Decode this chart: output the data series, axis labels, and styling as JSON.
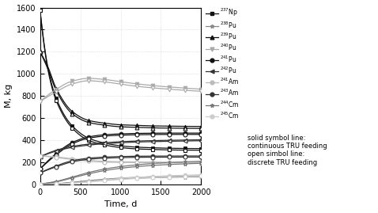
{
  "xlabel": "Time, d",
  "ylabel": "M, kg",
  "xlim": [
    0,
    2000
  ],
  "ylim": [
    0,
    1600
  ],
  "yticks": [
    0,
    200,
    400,
    600,
    800,
    1000,
    1200,
    1400,
    1600
  ],
  "xticks": [
    0,
    500,
    1000,
    1500,
    2000
  ],
  "series": [
    {
      "label": "$^{237}$Np",
      "color": "#111111",
      "marker": "s",
      "t_cont": [
        0,
        100,
        200,
        400,
        600,
        800,
        1000,
        1200,
        1400,
        1600,
        1800,
        2000
      ],
      "v_cont": [
        1575,
        1050,
        780,
        530,
        420,
        375,
        350,
        338,
        332,
        328,
        326,
        325
      ],
      "t_disc": [
        0,
        100,
        200,
        400,
        600,
        800,
        1000,
        1200,
        1400,
        1600,
        1800,
        2000
      ],
      "v_disc": [
        1575,
        1030,
        760,
        510,
        400,
        358,
        334,
        322,
        317,
        313,
        311,
        310
      ]
    },
    {
      "label": "$^{238}$Pu",
      "color": "#888888",
      "marker": "*",
      "t_cont": [
        0,
        200,
        400,
        600,
        800,
        1000,
        1200,
        1400,
        1600,
        1800,
        2000
      ],
      "v_cont": [
        3,
        8,
        20,
        35,
        48,
        58,
        65,
        70,
        74,
        77,
        79
      ],
      "t_disc": [
        0,
        200,
        400,
        600,
        800,
        1000,
        1200,
        1400,
        1600,
        1800,
        2000
      ],
      "v_disc": [
        3,
        7,
        17,
        30,
        42,
        51,
        57,
        62,
        65,
        68,
        70
      ]
    },
    {
      "label": "$^{239}$Pu",
      "color": "#111111",
      "marker": "^",
      "t_cont": [
        0,
        100,
        200,
        400,
        600,
        800,
        1000,
        1200,
        1400,
        1600,
        1800,
        2000
      ],
      "v_cont": [
        1200,
        1060,
        870,
        660,
        580,
        555,
        540,
        535,
        530,
        528,
        526,
        525
      ],
      "t_disc": [
        0,
        100,
        200,
        400,
        600,
        800,
        1000,
        1200,
        1400,
        1600,
        1800,
        2000
      ],
      "v_disc": [
        1200,
        1040,
        850,
        640,
        562,
        537,
        522,
        517,
        512,
        510,
        508,
        507
      ]
    },
    {
      "label": "$^{240}$Pu",
      "color": "#aaaaaa",
      "marker": "v",
      "t_cont": [
        0,
        200,
        400,
        600,
        800,
        1000,
        1200,
        1400,
        1600,
        1800,
        2000
      ],
      "v_cont": [
        750,
        860,
        935,
        960,
        950,
        930,
        910,
        895,
        882,
        872,
        862
      ],
      "t_disc": [
        0,
        200,
        400,
        600,
        800,
        1000,
        1200,
        1400,
        1600,
        1800,
        2000
      ],
      "v_disc": [
        750,
        838,
        910,
        938,
        928,
        908,
        888,
        874,
        862,
        852,
        843
      ]
    },
    {
      "label": "$^{241}$Pu",
      "color": "#111111",
      "marker": "o",
      "t_cont": [
        0,
        200,
        400,
        600,
        800,
        1000,
        1200,
        1400,
        1600,
        1800,
        2000
      ],
      "v_cont": [
        140,
        280,
        380,
        430,
        450,
        458,
        462,
        464,
        465,
        465,
        465
      ],
      "t_disc": [
        0,
        200,
        400,
        600,
        800,
        1000,
        1200,
        1400,
        1600,
        1800,
        2000
      ],
      "v_disc": [
        140,
        268,
        368,
        418,
        438,
        446,
        450,
        452,
        453,
        453,
        453
      ]
    },
    {
      "label": "$^{242}$Pu",
      "color": "#333333",
      "marker": "<",
      "t_cont": [
        0,
        200,
        400,
        600,
        800,
        1000,
        1200,
        1400,
        1600,
        1800,
        2000
      ],
      "v_cont": [
        250,
        310,
        345,
        365,
        378,
        387,
        393,
        397,
        400,
        403,
        405
      ],
      "t_disc": [
        0,
        200,
        400,
        600,
        800,
        1000,
        1200,
        1400,
        1600,
        1800,
        2000
      ],
      "v_disc": [
        250,
        302,
        336,
        356,
        369,
        378,
        384,
        388,
        391,
        394,
        396
      ]
    },
    {
      "label": "$^{241}$Am",
      "color": "#bbbbbb",
      "marker": "o",
      "t_cont": [
        0,
        200,
        400,
        600,
        800,
        1000,
        1200,
        1400,
        1600,
        1800,
        2000
      ],
      "v_cont": [
        260,
        250,
        232,
        218,
        210,
        206,
        204,
        203,
        202,
        202,
        201
      ],
      "t_disc": [
        0,
        200,
        400,
        600,
        800,
        1000,
        1200,
        1400,
        1600,
        1800,
        2000
      ],
      "v_disc": [
        260,
        244,
        226,
        212,
        204,
        200,
        198,
        197,
        196,
        196,
        195
      ]
    },
    {
      "label": "$^{243}$Am",
      "color": "#333333",
      "marker": "o",
      "t_cont": [
        0,
        200,
        400,
        600,
        800,
        1000,
        1200,
        1400,
        1600,
        1800,
        2000
      ],
      "v_cont": [
        105,
        168,
        215,
        238,
        248,
        253,
        256,
        257,
        258,
        258,
        258
      ],
      "t_disc": [
        0,
        200,
        400,
        600,
        800,
        1000,
        1200,
        1400,
        1600,
        1800,
        2000
      ],
      "v_disc": [
        105,
        160,
        205,
        228,
        238,
        243,
        246,
        247,
        248,
        248,
        248
      ]
    },
    {
      "label": "$^{244}$Cm",
      "color": "#777777",
      "marker": "*",
      "t_cont": [
        0,
        200,
        400,
        600,
        800,
        1000,
        1200,
        1400,
        1600,
        1800,
        2000
      ],
      "v_cont": [
        5,
        28,
        68,
        108,
        140,
        162,
        178,
        190,
        198,
        205,
        210
      ],
      "t_disc": [
        0,
        200,
        400,
        600,
        800,
        1000,
        1200,
        1400,
        1600,
        1800,
        2000
      ],
      "v_disc": [
        5,
        24,
        60,
        96,
        126,
        147,
        162,
        173,
        181,
        187,
        192
      ]
    },
    {
      "label": "$^{245}$Cm",
      "color": "#cccccc",
      "marker": "o",
      "t_cont": [
        0,
        200,
        400,
        600,
        800,
        1000,
        1200,
        1400,
        1600,
        1800,
        2000
      ],
      "v_cont": [
        1,
        5,
        14,
        28,
        42,
        55,
        65,
        73,
        79,
        84,
        88
      ],
      "t_disc": [
        0,
        200,
        400,
        600,
        800,
        1000,
        1200,
        1400,
        1600,
        1800,
        2000
      ],
      "v_disc": [
        1,
        4,
        11,
        23,
        35,
        46,
        55,
        62,
        68,
        72,
        76
      ]
    }
  ],
  "legend_text": [
    "solid symbol line:",
    "continuous TRU feeding",
    "open simbol line:",
    "discrete TRU feeding"
  ],
  "background_color": "#ffffff",
  "grid_color": "#cccccc",
  "figsize": [
    4.78,
    2.69
  ],
  "dpi": 100
}
